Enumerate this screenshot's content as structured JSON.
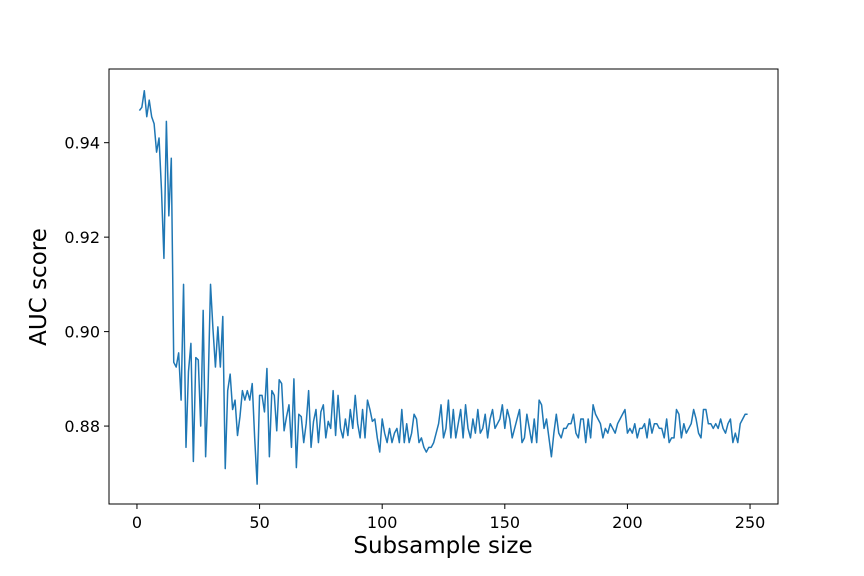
{
  "chart_data": {
    "type": "line",
    "xlabel": "Subsample size",
    "ylabel": "AUC score",
    "x": [
      1,
      2,
      3,
      4,
      5,
      6,
      7,
      8,
      9,
      10,
      11,
      12,
      13,
      14,
      15,
      16,
      17,
      18,
      19,
      20,
      21,
      22,
      23,
      24,
      25,
      26,
      27,
      28,
      29,
      30,
      31,
      32,
      33,
      34,
      35,
      36,
      37,
      38,
      39,
      40,
      41,
      42,
      43,
      44,
      45,
      46,
      47,
      48,
      49,
      50,
      51,
      52,
      53,
      54,
      55,
      56,
      57,
      58,
      59,
      60,
      61,
      62,
      63,
      64,
      65,
      66,
      67,
      68,
      69,
      70,
      71,
      72,
      73,
      74,
      75,
      76,
      77,
      78,
      79,
      80,
      81,
      82,
      83,
      84,
      85,
      86,
      87,
      88,
      89,
      90,
      91,
      92,
      93,
      94,
      95,
      96,
      97,
      98,
      99,
      100,
      101,
      102,
      103,
      104,
      105,
      106,
      107,
      108,
      109,
      110,
      111,
      112,
      113,
      114,
      115,
      116,
      117,
      118,
      119,
      120,
      121,
      122,
      123,
      124,
      125,
      126,
      127,
      128,
      129,
      130,
      131,
      132,
      133,
      134,
      135,
      136,
      137,
      138,
      139,
      140,
      141,
      142,
      143,
      144,
      145,
      146,
      147,
      148,
      149,
      150,
      151,
      152,
      153,
      154,
      155,
      156,
      157,
      158,
      159,
      160,
      161,
      162,
      163,
      164,
      165,
      166,
      167,
      168,
      169,
      170,
      171,
      172,
      173,
      174,
      175,
      176,
      177,
      178,
      179,
      180,
      181,
      182,
      183,
      184,
      185,
      186,
      187,
      188,
      189,
      190,
      191,
      192,
      193,
      194,
      195,
      196,
      197,
      198,
      199,
      200,
      201,
      202,
      203,
      204,
      205,
      206,
      207,
      208,
      209,
      210,
      211,
      212,
      213,
      214,
      215,
      216,
      217,
      218,
      219,
      220,
      221,
      222,
      223,
      224,
      225,
      226,
      227,
      228,
      229,
      230,
      231,
      232,
      233,
      234,
      235,
      236,
      237,
      238,
      239,
      240,
      241,
      242,
      243,
      244,
      245,
      246,
      247,
      248,
      249
    ],
    "series": [
      {
        "color": "#1f77b4",
        "values": [
          0.9468,
          0.9475,
          0.951,
          0.9455,
          0.949,
          0.9455,
          0.944,
          0.938,
          0.941,
          0.93,
          0.9155,
          0.9445,
          0.9245,
          0.9367,
          0.8935,
          0.8925,
          0.8955,
          0.8855,
          0.91,
          0.8755,
          0.8915,
          0.8975,
          0.8725,
          0.8945,
          0.894,
          0.88,
          0.9045,
          0.8735,
          0.888,
          0.91,
          0.9005,
          0.8925,
          0.901,
          0.8925,
          0.9032,
          0.871,
          0.8875,
          0.891,
          0.8835,
          0.8855,
          0.878,
          0.882,
          0.8875,
          0.8855,
          0.8875,
          0.8855,
          0.889,
          0.8775,
          0.8677,
          0.8865,
          0.8865,
          0.883,
          0.8922,
          0.8735,
          0.8875,
          0.8865,
          0.879,
          0.8898,
          0.889,
          0.879,
          0.882,
          0.8845,
          0.8755,
          0.89,
          0.8712,
          0.8825,
          0.882,
          0.8765,
          0.8805,
          0.8875,
          0.8755,
          0.881,
          0.8835,
          0.8765,
          0.883,
          0.8845,
          0.8775,
          0.881,
          0.8795,
          0.8875,
          0.878,
          0.8865,
          0.8795,
          0.8775,
          0.8815,
          0.878,
          0.8835,
          0.8795,
          0.8865,
          0.8805,
          0.8775,
          0.8835,
          0.8775,
          0.8855,
          0.8835,
          0.881,
          0.8815,
          0.8775,
          0.8745,
          0.8815,
          0.8785,
          0.8765,
          0.8795,
          0.8765,
          0.8785,
          0.8795,
          0.8765,
          0.8835,
          0.8765,
          0.8805,
          0.8765,
          0.8785,
          0.8825,
          0.8815,
          0.8765,
          0.8775,
          0.8755,
          0.8745,
          0.8755,
          0.8755,
          0.8765,
          0.8785,
          0.8805,
          0.8845,
          0.8775,
          0.8795,
          0.8855,
          0.8775,
          0.8835,
          0.8775,
          0.8805,
          0.8835,
          0.8775,
          0.8845,
          0.8795,
          0.8775,
          0.8815,
          0.8785,
          0.8835,
          0.8785,
          0.8795,
          0.8825,
          0.8775,
          0.8815,
          0.8835,
          0.8795,
          0.8805,
          0.8815,
          0.8845,
          0.8795,
          0.8835,
          0.8815,
          0.8775,
          0.8795,
          0.8815,
          0.8835,
          0.8765,
          0.8775,
          0.8825,
          0.8795,
          0.8765,
          0.8815,
          0.8765,
          0.8855,
          0.8845,
          0.8795,
          0.8815,
          0.8775,
          0.8735,
          0.8785,
          0.8825,
          0.8785,
          0.8775,
          0.8795,
          0.8795,
          0.8805,
          0.8805,
          0.8825,
          0.8785,
          0.8775,
          0.8815,
          0.8815,
          0.8765,
          0.8815,
          0.8775,
          0.8845,
          0.8825,
          0.8815,
          0.8805,
          0.8775,
          0.8795,
          0.8785,
          0.8805,
          0.8795,
          0.8785,
          0.8805,
          0.8815,
          0.8825,
          0.8835,
          0.8785,
          0.8795,
          0.8785,
          0.8805,
          0.8775,
          0.8795,
          0.8795,
          0.8805,
          0.8775,
          0.8815,
          0.8785,
          0.8805,
          0.8805,
          0.8795,
          0.8795,
          0.8775,
          0.8815,
          0.8765,
          0.8775,
          0.8775,
          0.8835,
          0.8825,
          0.8775,
          0.8805,
          0.8785,
          0.8795,
          0.8805,
          0.8835,
          0.8815,
          0.8785,
          0.8775,
          0.8835,
          0.8835,
          0.8805,
          0.8805,
          0.8795,
          0.8805,
          0.8795,
          0.8815,
          0.8795,
          0.8785,
          0.8805,
          0.8815,
          0.8765,
          0.8785,
          0.8765,
          0.8805,
          0.8815,
          0.8825,
          0.8825
        ]
      }
    ],
    "xlim": [
      -11.4,
      261.4
    ],
    "xticks": [
      0,
      50,
      100,
      150,
      200,
      250
    ],
    "ylim": [
      0.8635,
      0.9556
    ],
    "yticks": [
      0.88,
      {
        "value": 0.9,
        "label": "0.90"
      },
      0.92,
      0.94
    ],
    "grid": false
  }
}
